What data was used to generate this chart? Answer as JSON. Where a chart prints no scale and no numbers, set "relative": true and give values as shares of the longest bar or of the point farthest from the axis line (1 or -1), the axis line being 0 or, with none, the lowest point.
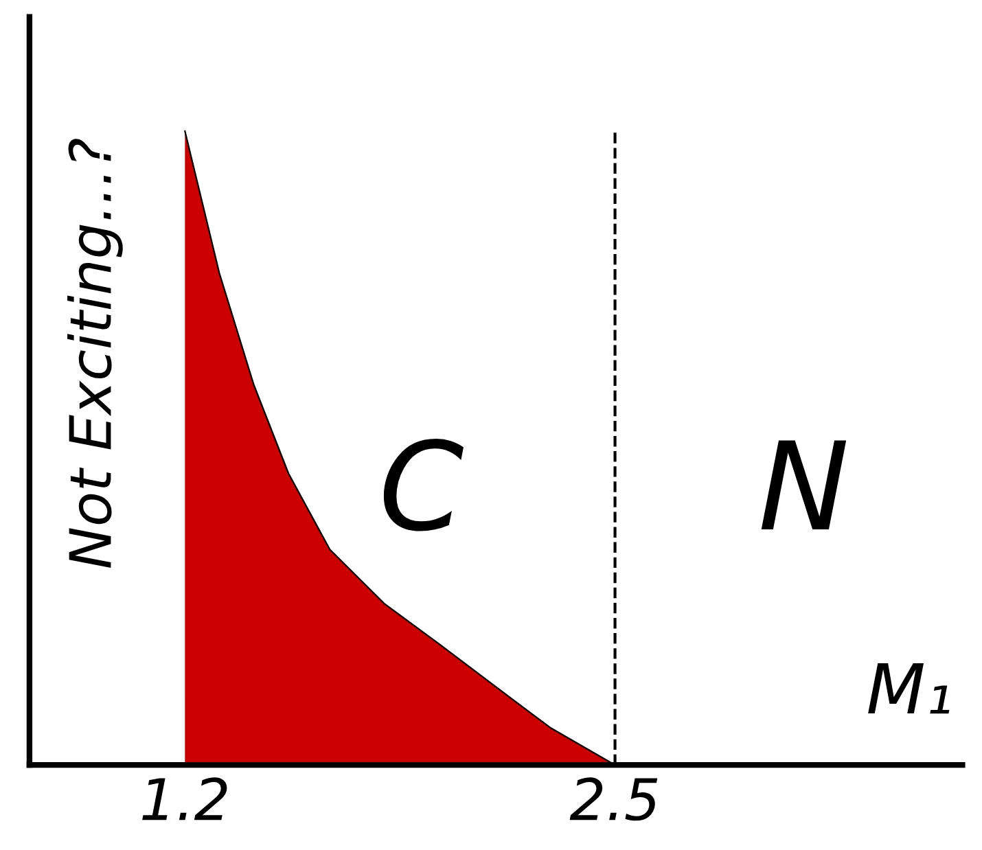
{
  "chart_data": {
    "type": "area",
    "relative": true,
    "ylabel": "Not Exciting...?",
    "xlabel": "M₁",
    "x": [
      1.2,
      1.304,
      1.408,
      1.513,
      1.638,
      1.804,
      1.971,
      2.138,
      2.304,
      2.5
    ],
    "values": [
      1.0,
      0.776,
      0.6,
      0.46,
      0.34,
      0.254,
      0.19,
      0.124,
      0.059,
      0
    ],
    "color": "#cc0000",
    "xlim": [
      0.73,
      3.55
    ],
    "xticks": [
      1.2,
      2.5
    ],
    "ref_lines": [
      {
        "axis": "x",
        "value": 2.5,
        "color": "#000000",
        "line_style": "dashed"
      }
    ],
    "annotations": [
      "C",
      "N"
    ],
    "grid": false
  }
}
